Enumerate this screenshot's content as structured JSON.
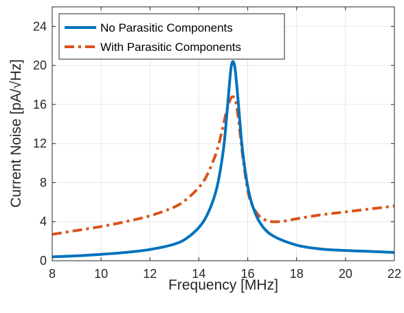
{
  "chart_data": {
    "type": "line",
    "xlabel": "Frequency [MHz]",
    "ylabel": "Current Noise [pA/√Hz]",
    "xlim": [
      8,
      22
    ],
    "ylim": [
      0,
      26
    ],
    "xticks": [
      8,
      10,
      12,
      14,
      16,
      18,
      20,
      22
    ],
    "yticks": [
      0,
      4,
      8,
      12,
      16,
      20,
      24
    ],
    "grid": true,
    "legend_position": "top-left",
    "series": [
      {
        "name": "No Parasitic Components",
        "color": "#0072BD",
        "style": "solid",
        "x": [
          8,
          9,
          10,
          11,
          12,
          13,
          13.5,
          14,
          14.3,
          14.6,
          14.8,
          15.0,
          15.1,
          15.2,
          15.3,
          15.35,
          15.4,
          15.45,
          15.5,
          15.6,
          15.7,
          15.8,
          16.0,
          16.2,
          16.5,
          17,
          18,
          19,
          20,
          21,
          22
        ],
        "y": [
          0.4,
          0.5,
          0.65,
          0.85,
          1.15,
          1.7,
          2.3,
          3.4,
          4.5,
          6.3,
          8.2,
          11.3,
          13.7,
          16.6,
          19.4,
          20.2,
          20.4,
          20.1,
          19.3,
          16.6,
          13.6,
          11.0,
          7.6,
          5.6,
          3.9,
          2.6,
          1.6,
          1.2,
          1.05,
          0.95,
          0.85
        ]
      },
      {
        "name": "With Parasitic Components",
        "color": "#D95319",
        "style": "dashdot",
        "x": [
          8,
          9,
          10,
          11,
          12,
          13,
          13.5,
          14,
          14.3,
          14.6,
          14.8,
          15.0,
          15.1,
          15.2,
          15.3,
          15.4,
          15.5,
          15.6,
          15.7,
          15.8,
          16.0,
          16.2,
          16.5,
          16.8,
          17.0,
          17.3,
          17.6,
          18,
          19,
          20,
          21,
          22
        ],
        "y": [
          2.7,
          3.1,
          3.5,
          4.0,
          4.6,
          5.5,
          6.3,
          7.5,
          8.6,
          10.3,
          11.8,
          13.9,
          15.0,
          15.9,
          16.6,
          16.8,
          16.4,
          14.9,
          12.8,
          10.6,
          7.2,
          5.6,
          4.5,
          4.1,
          4.0,
          4.0,
          4.1,
          4.3,
          4.7,
          5.0,
          5.3,
          5.6
        ]
      }
    ]
  }
}
